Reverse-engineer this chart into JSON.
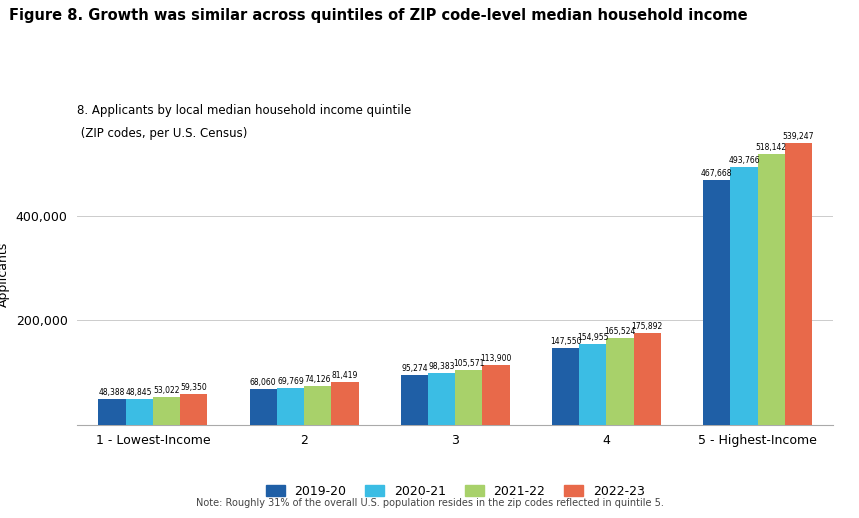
{
  "title": "Figure 8. Growth was similar across quintiles of ZIP code-level median household income",
  "subtitle_line1": "8. Applicants by local median household income quintile",
  "subtitle_line2": " (ZIP codes, per U.S. Census)",
  "categories": [
    "1 - Lowest-Income",
    "2",
    "3",
    "4",
    "5 - Highest-Income"
  ],
  "series": {
    "2019-20": [
      48388,
      68060,
      95274,
      147550,
      467668
    ],
    "2020-21": [
      48845,
      69769,
      98383,
      154955,
      493766
    ],
    "2021-22": [
      53022,
      74126,
      105571,
      165524,
      518142
    ],
    "2022-23": [
      59350,
      81419,
      113900,
      175892,
      539247
    ]
  },
  "colors": {
    "2019-20": "#1f5fa6",
    "2020-21": "#3bbde4",
    "2021-22": "#a8d16a",
    "2022-23": "#e8694a"
  },
  "ylabel": "Applicants",
  "yticks": [
    200000,
    400000
  ],
  "ytick_labels": [
    "200,000",
    "400,000"
  ],
  "note": "Note: Roughly 31% of the overall U.S. population resides in the zip codes reflected in quintile 5.",
  "bar_width": 0.18,
  "background_color": "#ffffff",
  "value_labels": {
    "2019-20": [
      "48,388",
      "68,060",
      "95,274",
      "147,550",
      "467,668"
    ],
    "2020-21": [
      "48,845",
      "69,769",
      "98,383",
      "154,955",
      "493,766"
    ],
    "2021-22": [
      "53,022",
      "74,126",
      "105,571",
      "165,524",
      "518,142"
    ],
    "2022-23": [
      "59,350",
      "81,419",
      "113,900",
      "175,892",
      "539,247"
    ]
  }
}
